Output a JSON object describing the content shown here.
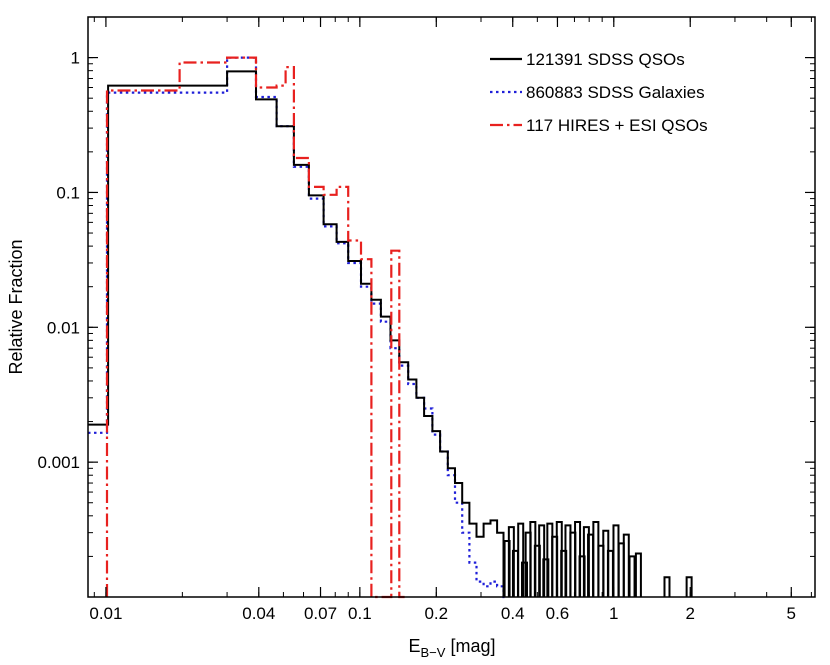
{
  "chart_data": {
    "type": "line",
    "style": "step-histogram",
    "x_scale": "log",
    "y_scale": "log",
    "xlim": [
      0.0085,
      6.2
    ],
    "ylim": [
      0.0001,
      2.0
    ],
    "xlabel": "E",
    "xlabel_sub": "B−V",
    "xlabel_unit": " [mag]",
    "ylabel": "Relative Fraction",
    "grid": false,
    "legend_position": "top-right",
    "x_ticks": [
      {
        "value": 0.01,
        "label": "0.01"
      },
      {
        "value": 0.04,
        "label": "0.04"
      },
      {
        "value": 0.07,
        "label": "0.07"
      },
      {
        "value": 0.1,
        "label": "0.1"
      },
      {
        "value": 0.2,
        "label": "0.2"
      },
      {
        "value": 0.4,
        "label": "0.4"
      },
      {
        "value": 0.6,
        "label": "0.6"
      },
      {
        "value": 1,
        "label": "1"
      },
      {
        "value": 2,
        "label": "2"
      },
      {
        "value": 5,
        "label": "5"
      }
    ],
    "y_ticks": [
      {
        "value": 0.001,
        "label": "0.001"
      },
      {
        "value": 0.01,
        "label": "0.01"
      },
      {
        "value": 0.1,
        "label": "0.1"
      },
      {
        "value": 1,
        "label": "1"
      }
    ],
    "series": [
      {
        "name": "121391 SDSS QSOs",
        "color": "#000000",
        "dash": "solid",
        "edges": [
          0.0085,
          0.0102,
          0.0195,
          0.03,
          0.039,
          0.047,
          0.055,
          0.063,
          0.072,
          0.081,
          0.09,
          0.101,
          0.111,
          0.121,
          0.132,
          0.143,
          0.155,
          0.167,
          0.179,
          0.193,
          0.207,
          0.222,
          0.237,
          0.253,
          0.27,
          0.288,
          0.307,
          0.327,
          0.347,
          0.368
        ],
        "values": [
          0.0019,
          0.62,
          0.62,
          0.79,
          0.49,
          0.31,
          0.16,
          0.095,
          0.058,
          0.043,
          0.031,
          0.021,
          0.016,
          0.012,
          0.008,
          0.0055,
          0.0041,
          0.003,
          0.0022,
          0.0017,
          0.0012,
          0.0009,
          0.0007,
          0.0005,
          0.00035,
          0.00028,
          0.00035,
          0.00037,
          0.0003
        ],
        "tail_spikes": [
          {
            "x": 0.38,
            "top": 0.00026
          },
          {
            "x": 0.395,
            "top": 0.00033
          },
          {
            "x": 0.41,
            "top": 0.00022
          },
          {
            "x": 0.43,
            "top": 0.00035
          },
          {
            "x": 0.445,
            "top": 0.00018
          },
          {
            "x": 0.46,
            "top": 0.0003
          },
          {
            "x": 0.48,
            "top": 0.00036
          },
          {
            "x": 0.5,
            "top": 0.00024
          },
          {
            "x": 0.52,
            "top": 0.00034
          },
          {
            "x": 0.54,
            "top": 0.00019
          },
          {
            "x": 0.56,
            "top": 0.00035
          },
          {
            "x": 0.585,
            "top": 0.00028
          },
          {
            "x": 0.61,
            "top": 0.00036
          },
          {
            "x": 0.635,
            "top": 0.00022
          },
          {
            "x": 0.66,
            "top": 0.00034
          },
          {
            "x": 0.69,
            "top": 0.0003
          },
          {
            "x": 0.72,
            "top": 0.00036
          },
          {
            "x": 0.75,
            "top": 0.0002
          },
          {
            "x": 0.78,
            "top": 0.00033
          },
          {
            "x": 0.81,
            "top": 0.00029
          },
          {
            "x": 0.85,
            "top": 0.00036
          },
          {
            "x": 0.89,
            "top": 0.00024
          },
          {
            "x": 0.93,
            "top": 0.00031
          },
          {
            "x": 0.97,
            "top": 0.00022
          },
          {
            "x": 1.02,
            "top": 0.00034
          },
          {
            "x": 1.07,
            "top": 0.00025
          },
          {
            "x": 1.12,
            "top": 0.00029
          },
          {
            "x": 1.18,
            "top": 0.0002
          },
          {
            "x": 1.25,
            "top": 0.00021
          },
          {
            "x": 1.62,
            "top": 0.00014
          },
          {
            "x": 1.98,
            "top": 0.00014
          }
        ]
      },
      {
        "name": "860883 SDSS Galaxies",
        "color": "#1f1fd8",
        "dash": "dotted",
        "edges": [
          0.0085,
          0.0101,
          0.0195,
          0.03,
          0.039,
          0.047,
          0.055,
          0.063,
          0.072,
          0.081,
          0.09,
          0.101,
          0.111,
          0.121,
          0.132,
          0.143,
          0.155,
          0.167,
          0.179,
          0.193,
          0.207,
          0.222,
          0.237,
          0.253,
          0.27,
          0.288,
          0.307,
          0.327,
          0.347,
          0.368,
          0.38
        ],
        "values": [
          0.00165,
          0.55,
          0.55,
          1.0,
          0.51,
          0.31,
          0.155,
          0.09,
          0.056,
          0.042,
          0.03,
          0.02,
          0.015,
          0.011,
          0.007,
          0.0052,
          0.0038,
          0.003,
          0.0025,
          0.0016,
          0.0012,
          0.0008,
          0.0005,
          0.0003,
          0.00018,
          0.00013,
          0.00012,
          0.00013,
          0.00012,
          0.0001
        ]
      },
      {
        "name": "117 HIRES + ESI QSOs",
        "color": "#e8211f",
        "dash": "dashdot",
        "edges": [
          0.0101,
          0.0195,
          0.03,
          0.039,
          0.047,
          0.051,
          0.055,
          0.063,
          0.072,
          0.081,
          0.09,
          0.101,
          0.111,
          0.133,
          0.143,
          0.15
        ],
        "values": [
          0.57,
          0.92,
          1.0,
          0.6,
          0.62,
          0.85,
          0.18,
          0.11,
          0.096,
          0.11,
          0.044,
          0.032,
          0.0001,
          0.037,
          0.0001
        ],
        "drop_to_floor": [
          0.0101,
          0.111,
          0.133,
          0.15
        ]
      }
    ]
  }
}
